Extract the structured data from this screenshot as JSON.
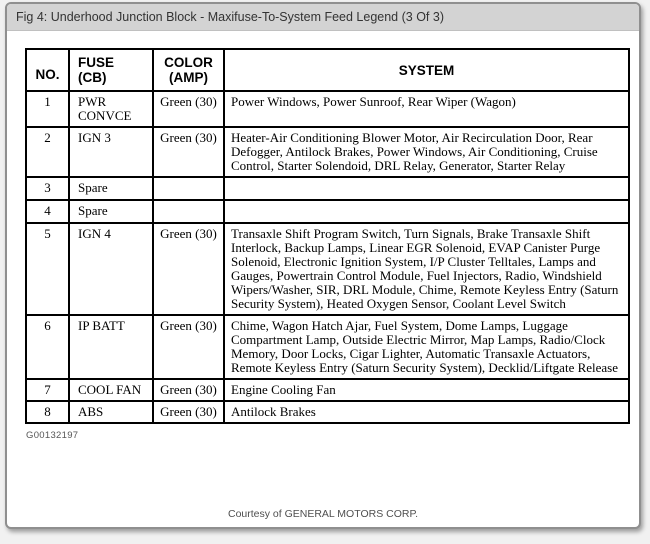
{
  "title_bar": {
    "text": "Fig 4: Underhood Junction Block - Maxifuse-To-System Feed Legend (3 Of 3)"
  },
  "table": {
    "headers": {
      "no": "NO.",
      "fuse": "FUSE\n(CB)",
      "color": "COLOR\n(AMP)",
      "system": "SYSTEM"
    },
    "rows": [
      {
        "no": "1",
        "fuse": "PWR\nCONVCE",
        "color": "Green (30)",
        "system": "Power Windows, Power Sunroof, Rear Wiper (Wagon)"
      },
      {
        "no": "2",
        "fuse": "IGN 3",
        "color": "Green (30)",
        "system": "Heater-Air Conditioning Blower Motor, Air Recirculation Door, Rear Defogger, Antilock Brakes, Power Windows, Air Conditioning, Cruise Control, Starter Solendoid, DRL Relay, Generator, Starter Relay"
      },
      {
        "no": "3",
        "fuse": "Spare",
        "color": "",
        "system": ""
      },
      {
        "no": "4",
        "fuse": "Spare",
        "color": "",
        "system": ""
      },
      {
        "no": "5",
        "fuse": "IGN 4",
        "color": "Green (30)",
        "system": "Transaxle Shift Program Switch, Turn Signals, Brake Transaxle Shift Interlock, Backup Lamps, Linear EGR Solenoid, EVAP Canister Purge Solenoid, Electronic Ignition System, I/P Cluster Telltales, Lamps and Gauges, Powertrain Control Module, Fuel Injectors, Radio, Windshield Wipers/Washer, SIR, DRL Module, Chime, Remote Keyless Entry (Saturn Security System), Heated Oxygen Sensor, Coolant Level Switch"
      },
      {
        "no": "6",
        "fuse": "IP BATT",
        "color": "Green (30)",
        "system": "Chime, Wagon Hatch Ajar, Fuel System, Dome Lamps, Luggage Compartment Lamp, Outside Electric Mirror, Map Lamps, Radio/Clock Memory, Door Locks, Cigar Lighter, Automatic Transaxle Actuators, Remote Keyless Entry (Saturn Security System), Decklid/Liftgate Release"
      },
      {
        "no": "7",
        "fuse": "COOL FAN",
        "color": "Green (30)",
        "system": "Engine Cooling Fan"
      },
      {
        "no": "8",
        "fuse": "ABS",
        "color": "Green (30)",
        "system": "Antilock Brakes"
      }
    ]
  },
  "footer": {
    "figure_id": "G00132197",
    "courtesy": "Courtesy of GENERAL MOTORS CORP."
  },
  "colors": {
    "title_bar_bg": "#d3d3d3",
    "page_border": "#8f8f8f",
    "table_border": "#000000",
    "muted_text": "#565656"
  }
}
